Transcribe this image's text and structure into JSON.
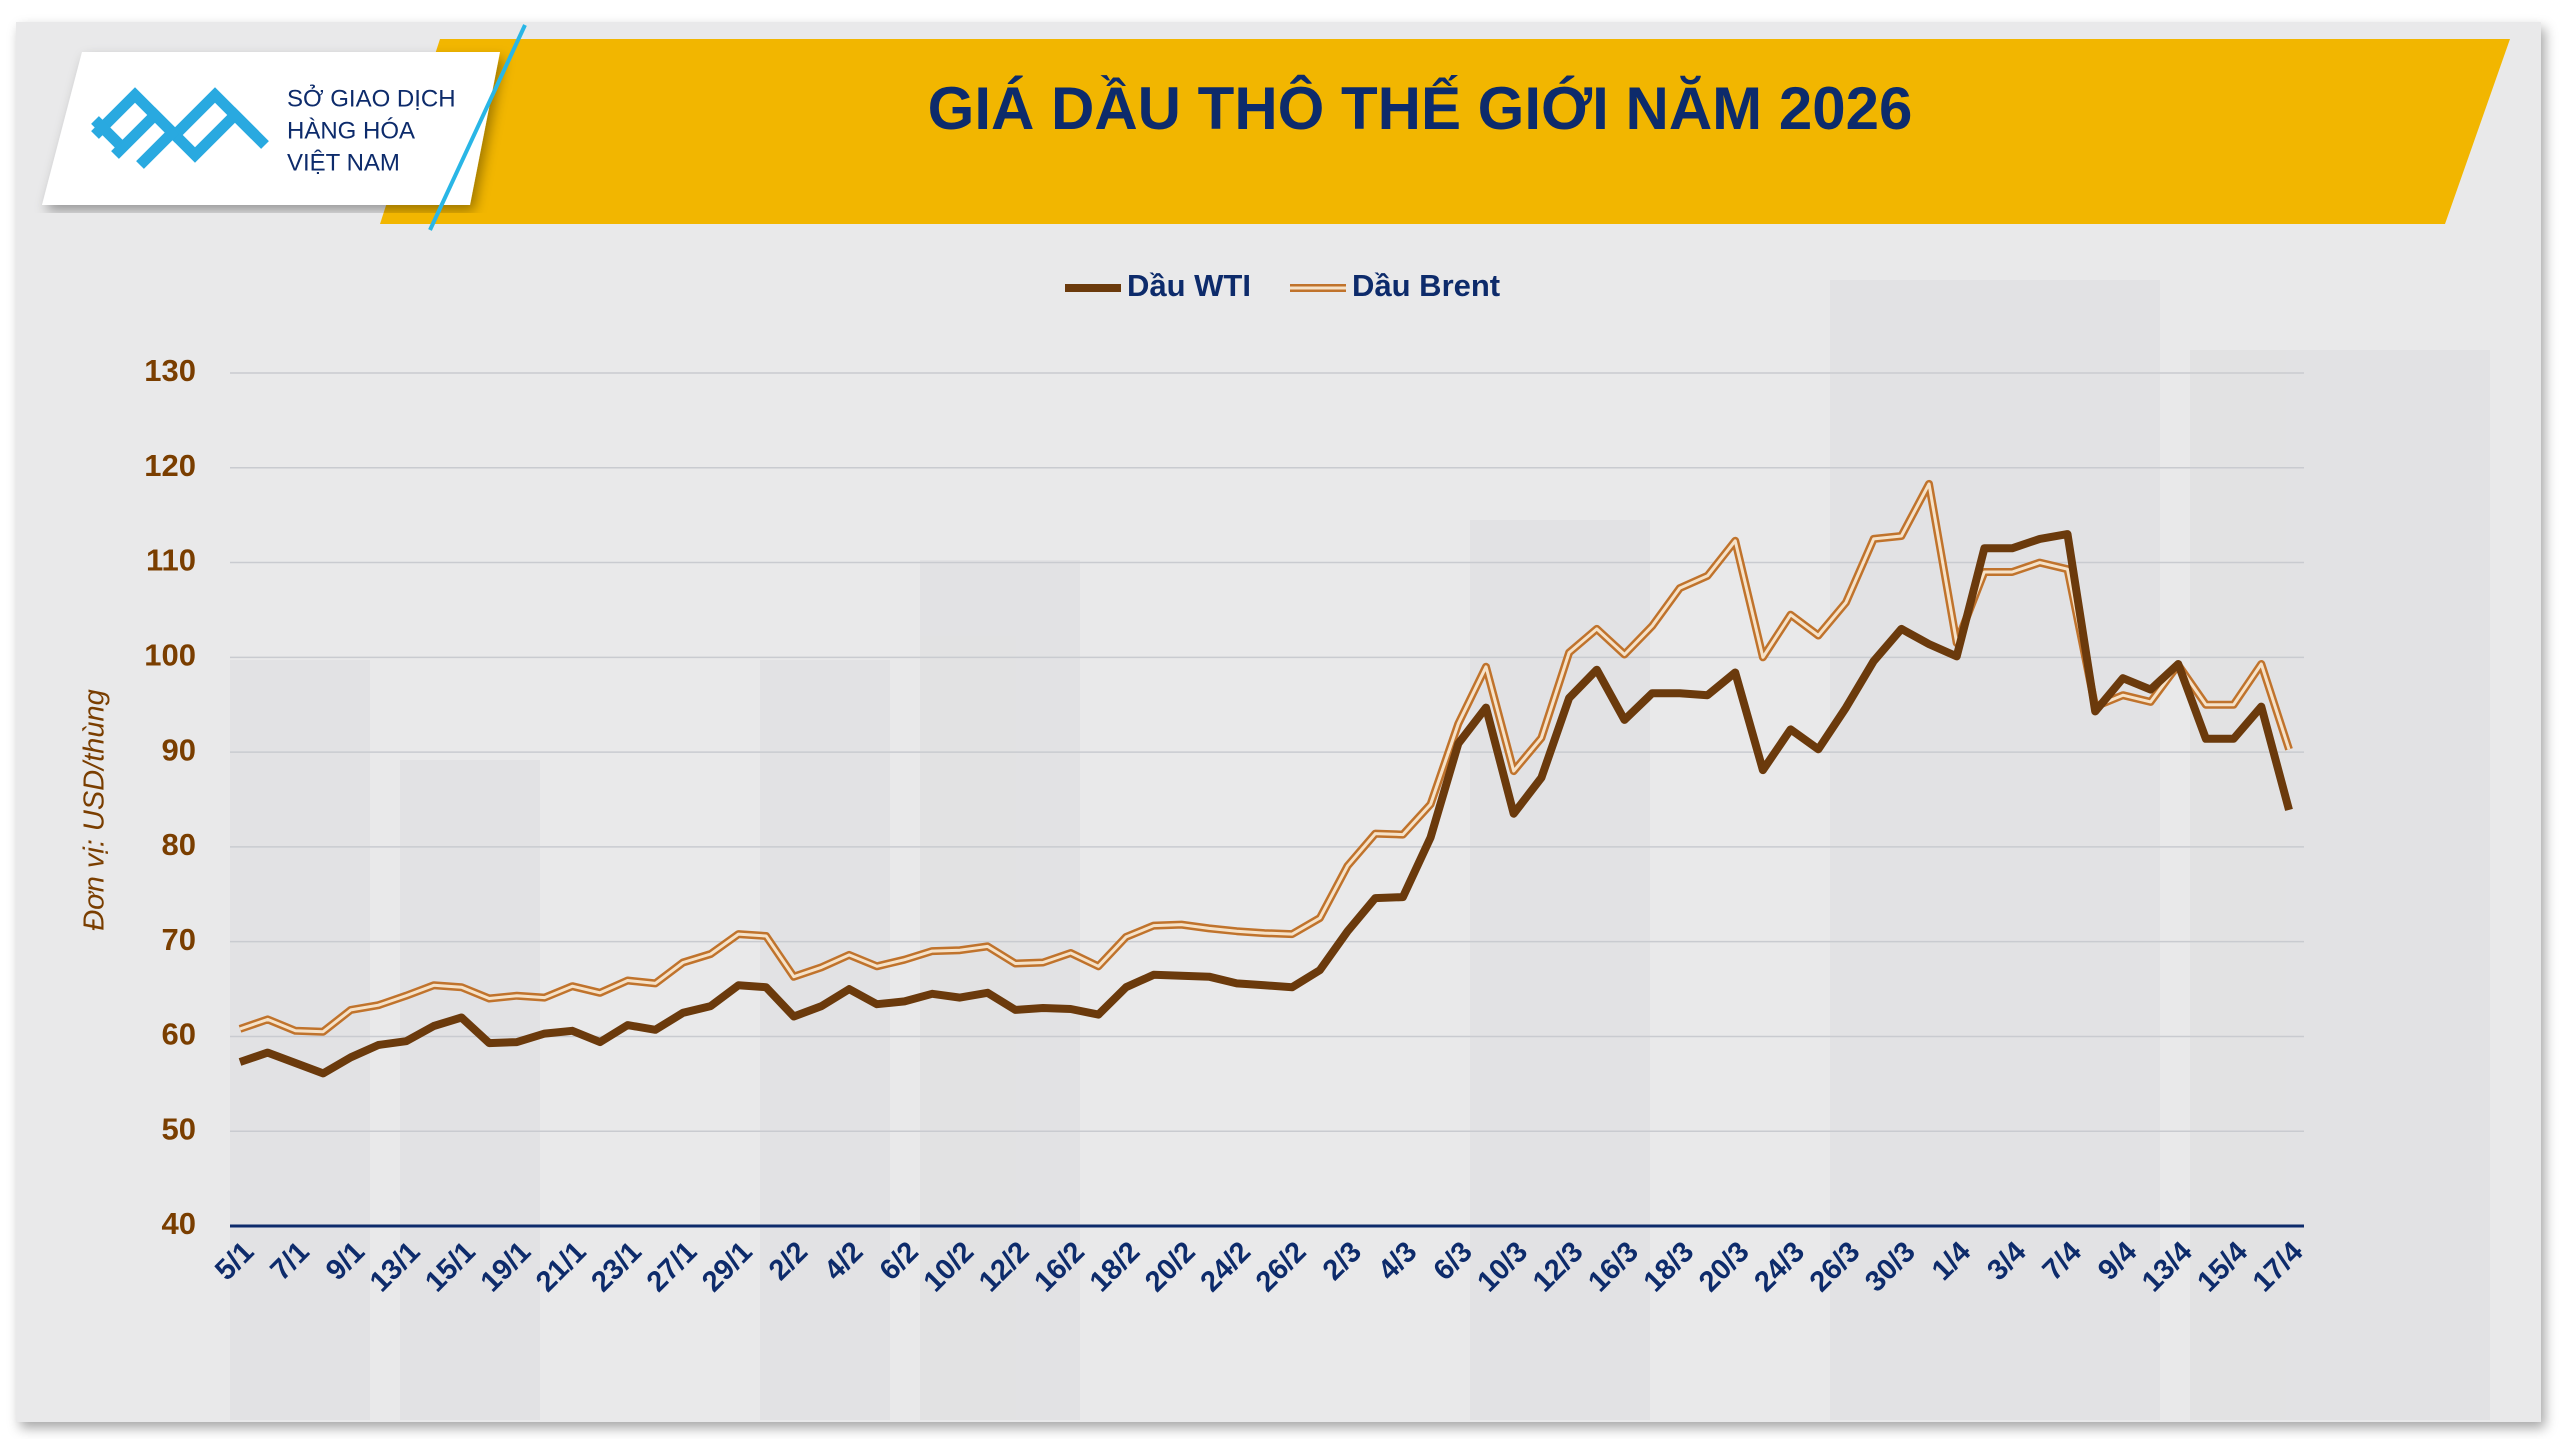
{
  "logo_text": [
    "SỞ GIAO DỊCH",
    "HÀNG HÓA",
    "VIỆT NAM"
  ],
  "chart_data": {
    "type": "line",
    "title": "GIÁ DẦU THÔ THẾ GIỚI NĂM 2026",
    "y_label": "Đơn vị: USD/thùng",
    "categories": [
      "5/1",
      null,
      "7/1",
      null,
      "9/1",
      null,
      "13/1",
      null,
      "15/1",
      null,
      "19/1",
      null,
      "21/1",
      null,
      "23/1",
      null,
      "27/1",
      null,
      "29/1",
      null,
      "2/2",
      null,
      "4/2",
      null,
      "6/2",
      null,
      "10/2",
      null,
      "12/2",
      null,
      "16/2",
      null,
      "18/2",
      null,
      "20/2",
      null,
      "24/2",
      null,
      "26/2",
      null,
      "2/3",
      null,
      "4/3",
      null,
      "6/3",
      null,
      "10/3",
      null,
      "12/3",
      null,
      "16/3",
      null,
      "18/3",
      null,
      "20/3",
      null,
      "24/3",
      null,
      "26/3",
      null,
      "30/3",
      null,
      "1/4",
      null,
      "3/4",
      null,
      "7/4",
      null,
      "9/4",
      null,
      "13/4",
      null,
      "15/4",
      null,
      "17/4"
    ],
    "series": [
      {
        "name": "Dầu WTI",
        "color": "#6b3a0c",
        "values": [
          57.3,
          58.3,
          57.2,
          56.1,
          57.8,
          59.1,
          59.5,
          61.1,
          62.0,
          59.3,
          59.4,
          60.3,
          60.6,
          59.4,
          61.2,
          60.7,
          62.5,
          63.2,
          65.4,
          65.2,
          62.1,
          63.2,
          65.0,
          63.4,
          63.7,
          64.5,
          64.1,
          64.6,
          62.8,
          63.0,
          62.9,
          62.3,
          65.2,
          66.5,
          66.4,
          66.3,
          65.6,
          65.4,
          65.2,
          67.0,
          71.1,
          74.6,
          74.7,
          81.0,
          90.9,
          94.7,
          83.5,
          87.3,
          95.7,
          98.7,
          93.4,
          96.2,
          96.2,
          96.0,
          98.4,
          88.1,
          92.4,
          90.3,
          94.7,
          99.6,
          103.0,
          101.4,
          100.1,
          111.5,
          111.5,
          112.5,
          113.0,
          94.3,
          97.8,
          96.6,
          99.3,
          91.4,
          91.4,
          94.8,
          83.9
        ]
      },
      {
        "name": "Dầu Brent",
        "color": "#c0732c",
        "values": [
          60.8,
          61.8,
          60.6,
          60.5,
          62.8,
          63.3,
          64.3,
          65.4,
          65.2,
          64.0,
          64.3,
          64.1,
          65.3,
          64.6,
          65.9,
          65.6,
          67.8,
          68.7,
          70.8,
          70.6,
          66.3,
          67.3,
          68.6,
          67.4,
          68.1,
          69.0,
          69.1,
          69.5,
          67.7,
          67.8,
          68.8,
          67.4,
          70.5,
          71.7,
          71.8,
          71.4,
          71.1,
          70.9,
          70.8,
          72.5,
          78.0,
          81.4,
          81.3,
          84.5,
          93.0,
          99.0,
          88.0,
          91.5,
          100.5,
          103.0,
          100.3,
          103.3,
          107.3,
          108.6,
          112.3,
          100.0,
          104.5,
          102.3,
          105.8,
          112.5,
          112.8,
          118.3,
          101.5,
          109.0,
          109.0,
          110.0,
          109.3,
          94.8,
          96.0,
          95.3,
          99.2,
          95.0,
          95.0,
          99.3,
          90.3
        ]
      }
    ],
    "ylim": [
      40,
      130
    ],
    "yticks": [
      40,
      50,
      60,
      70,
      80,
      90,
      100,
      110,
      120,
      130
    ],
    "grid": true,
    "legend": "top"
  }
}
